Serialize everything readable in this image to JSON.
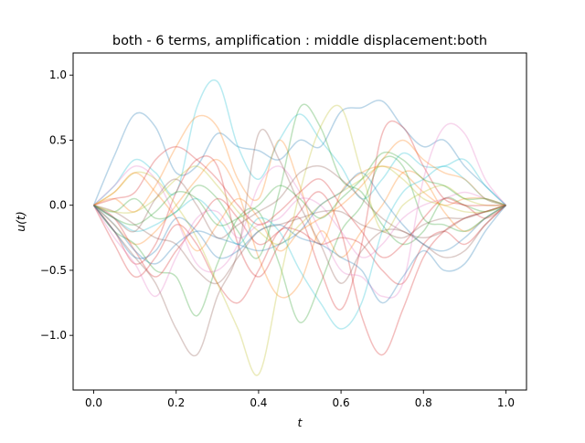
{
  "chart_data": {
    "type": "line",
    "title": "both - 6 terms, amplification : middle displacement:both",
    "xlabel": "t",
    "ylabel": "u(t)",
    "xlim": [
      -0.05,
      1.05
    ],
    "ylim": [
      -1.42,
      1.17
    ],
    "xticks": [
      0.0,
      0.2,
      0.4,
      0.6,
      0.8,
      1.0
    ],
    "xtick_labels": [
      "0.0",
      "0.2",
      "0.4",
      "0.6",
      "0.8",
      "1.0"
    ],
    "yticks": [
      -1.0,
      -0.5,
      0.0,
      0.5,
      1.0
    ],
    "ytick_labels": [
      "−1.0",
      "−0.5",
      "0.0",
      "0.5",
      "1.0"
    ],
    "grid": false,
    "legend": false,
    "line_alpha": 0.3,
    "x": [
      0.0,
      0.05,
      0.1,
      0.15,
      0.2,
      0.25,
      0.3,
      0.35,
      0.4,
      0.45,
      0.5,
      0.55,
      0.6,
      0.65,
      0.7,
      0.75,
      0.8,
      0.85,
      0.9,
      0.95,
      1.0
    ],
    "series": [
      {
        "color": "#1f77b4",
        "values": [
          0.0,
          0.38,
          0.7,
          0.6,
          0.25,
          0.3,
          0.55,
          0.45,
          0.42,
          0.35,
          0.5,
          0.45,
          0.72,
          0.75,
          0.8,
          0.6,
          0.45,
          0.5,
          0.3,
          0.15,
          0.0
        ]
      },
      {
        "color": "#17becf",
        "values": [
          0.0,
          0.15,
          0.35,
          0.25,
          0.1,
          0.75,
          0.95,
          0.45,
          0.2,
          0.5,
          0.7,
          0.5,
          0.3,
          0.05,
          0.2,
          0.4,
          0.3,
          0.3,
          0.35,
          0.15,
          0.0
        ]
      },
      {
        "color": "#ff7f0e",
        "values": [
          0.0,
          0.05,
          -0.05,
          0.15,
          0.45,
          0.68,
          0.6,
          0.2,
          0.05,
          0.5,
          0.15,
          -0.3,
          0.1,
          0.25,
          0.3,
          0.25,
          0.1,
          0.0,
          0.05,
          0.05,
          0.0
        ]
      },
      {
        "color": "#ff7f0e",
        "values": [
          0.0,
          -0.15,
          -0.3,
          -0.2,
          0.0,
          0.2,
          0.35,
          0.1,
          -0.4,
          -0.7,
          -0.6,
          -0.2,
          -0.4,
          -0.2,
          0.0,
          0.25,
          0.2,
          -0.05,
          -0.2,
          -0.1,
          0.0
        ]
      },
      {
        "color": "#2ca02c",
        "values": [
          0.0,
          -0.2,
          -0.3,
          -0.5,
          -0.55,
          -0.85,
          -0.45,
          -0.1,
          -0.05,
          -0.45,
          -0.9,
          -0.6,
          -0.2,
          0.0,
          0.35,
          0.3,
          -0.1,
          -0.15,
          -0.2,
          -0.1,
          0.0
        ]
      },
      {
        "color": "#2ca02c",
        "values": [
          0.0,
          -0.05,
          0.05,
          -0.1,
          -0.05,
          0.15,
          0.05,
          -0.2,
          -0.4,
          0.1,
          0.75,
          0.6,
          0.2,
          0.1,
          -0.15,
          -0.3,
          -0.2,
          0.05,
          0.0,
          -0.05,
          0.0
        ]
      },
      {
        "color": "#d62728",
        "values": [
          0.0,
          -0.1,
          -0.35,
          -0.55,
          -0.35,
          -0.15,
          0.05,
          -0.1,
          -0.3,
          -0.2,
          -0.1,
          -0.5,
          -0.8,
          -0.3,
          0.55,
          0.6,
          0.3,
          0.05,
          0.0,
          -0.1,
          0.0
        ]
      },
      {
        "color": "#d62728",
        "values": [
          0.0,
          -0.2,
          -0.45,
          -0.3,
          0.1,
          0.35,
          0.3,
          -0.3,
          -0.55,
          -0.3,
          -0.05,
          0.1,
          -0.2,
          -0.85,
          -1.15,
          -0.8,
          -0.4,
          -0.2,
          -0.1,
          -0.05,
          0.0
        ]
      },
      {
        "color": "#d62728",
        "values": [
          0.0,
          -0.3,
          -0.55,
          -0.4,
          -0.15,
          -0.3,
          -0.6,
          -0.75,
          -0.5,
          -0.2,
          -0.2,
          -0.3,
          -0.25,
          -0.3,
          -0.5,
          -0.6,
          -0.3,
          -0.2,
          -0.3,
          -0.15,
          0.0
        ]
      },
      {
        "color": "#e377c2",
        "values": [
          0.0,
          0.15,
          0.3,
          0.2,
          -0.1,
          -0.45,
          -0.5,
          -0.3,
          0.15,
          0.3,
          0.1,
          -0.2,
          -0.5,
          -0.55,
          -0.7,
          -0.6,
          0.2,
          0.6,
          0.55,
          0.2,
          0.0
        ]
      },
      {
        "color": "#e377c2",
        "values": [
          0.0,
          -0.25,
          -0.45,
          -0.7,
          -0.4,
          -0.1,
          -0.05,
          -0.25,
          -0.15,
          -0.1,
          0.05,
          0.0,
          -0.2,
          -0.4,
          -0.3,
          -0.1,
          0.0,
          0.05,
          0.1,
          0.05,
          0.0
        ]
      },
      {
        "color": "#8c564b",
        "values": [
          0.0,
          -0.2,
          -0.4,
          -0.6,
          -0.95,
          -1.15,
          -0.7,
          -0.35,
          0.55,
          0.35,
          0.0,
          -0.3,
          -0.6,
          -0.35,
          -0.2,
          -0.2,
          -0.3,
          -0.4,
          -0.35,
          -0.15,
          0.0
        ]
      },
      {
        "color": "#8c564b",
        "values": [
          0.0,
          -0.05,
          -0.15,
          -0.25,
          -0.3,
          -0.5,
          -0.6,
          -0.4,
          -0.2,
          -0.15,
          -0.1,
          -0.05,
          -0.05,
          -0.15,
          -0.2,
          -0.25,
          -0.15,
          -0.1,
          -0.1,
          -0.05,
          0.0
        ]
      },
      {
        "color": "#bcbd22",
        "values": [
          0.0,
          0.1,
          0.25,
          0.2,
          0.0,
          -0.25,
          -0.6,
          -0.95,
          -1.3,
          -0.6,
          0.1,
          0.6,
          0.75,
          0.25,
          -0.2,
          0.0,
          0.1,
          0.15,
          0.05,
          0.0,
          0.0
        ]
      },
      {
        "color": "#bcbd22",
        "values": [
          0.0,
          -0.05,
          -0.05,
          0.05,
          0.2,
          0.3,
          0.15,
          -0.05,
          -0.2,
          -0.3,
          -0.15,
          0.0,
          0.1,
          0.2,
          0.3,
          0.2,
          0.05,
          0.0,
          -0.05,
          -0.05,
          0.0
        ]
      },
      {
        "color": "#1f77b4",
        "values": [
          0.0,
          -0.2,
          -0.4,
          -0.35,
          -0.1,
          -0.2,
          -0.4,
          -0.35,
          -0.2,
          -0.15,
          -0.25,
          -0.3,
          -0.4,
          -0.5,
          -0.75,
          -0.55,
          -0.35,
          -0.5,
          -0.45,
          -0.2,
          0.0
        ]
      },
      {
        "color": "#1f77b4",
        "values": [
          0.0,
          -0.15,
          -0.35,
          -0.45,
          -0.3,
          -0.2,
          -0.25,
          -0.3,
          -0.35,
          -0.3,
          -0.2,
          0.0,
          0.1,
          0.25,
          0.05,
          -0.15,
          -0.3,
          -0.35,
          -0.25,
          -0.1,
          0.0
        ]
      },
      {
        "color": "#17becf",
        "values": [
          0.0,
          -0.1,
          -0.2,
          -0.15,
          -0.05,
          0.05,
          -0.1,
          -0.3,
          -0.1,
          -0.2,
          -0.5,
          -0.75,
          -0.95,
          -0.75,
          -0.2,
          0.1,
          0.2,
          0.3,
          0.2,
          0.05,
          0.0
        ]
      },
      {
        "color": "#ff7f0e",
        "values": [
          0.0,
          0.1,
          0.25,
          0.1,
          -0.1,
          -0.35,
          -0.15,
          0.05,
          -0.1,
          -0.35,
          -0.2,
          -0.1,
          0.0,
          0.15,
          0.35,
          0.5,
          0.35,
          0.25,
          0.2,
          0.05,
          0.0
        ]
      },
      {
        "color": "#2ca02c",
        "values": [
          0.0,
          -0.1,
          -0.15,
          -0.05,
          0.1,
          0.05,
          -0.15,
          -0.1,
          0.0,
          0.15,
          0.05,
          -0.1,
          0.05,
          0.2,
          0.4,
          0.35,
          0.2,
          0.15,
          0.05,
          0.05,
          0.0
        ]
      },
      {
        "color": "#d62728",
        "values": [
          0.0,
          0.05,
          0.1,
          0.35,
          0.45,
          0.35,
          0.2,
          0.0,
          -0.15,
          -0.05,
          0.1,
          0.2,
          0.0,
          -0.2,
          -0.4,
          -0.3,
          -0.1,
          0.05,
          0.0,
          0.0,
          0.0
        ]
      },
      {
        "color": "#8c564b",
        "values": [
          0.0,
          -0.1,
          -0.2,
          0.05,
          0.2,
          0.0,
          -0.25,
          -0.15,
          -0.05,
          0.05,
          0.25,
          0.3,
          0.2,
          0.05,
          -0.1,
          -0.2,
          -0.25,
          -0.2,
          -0.1,
          -0.05,
          0.0
        ]
      }
    ]
  }
}
